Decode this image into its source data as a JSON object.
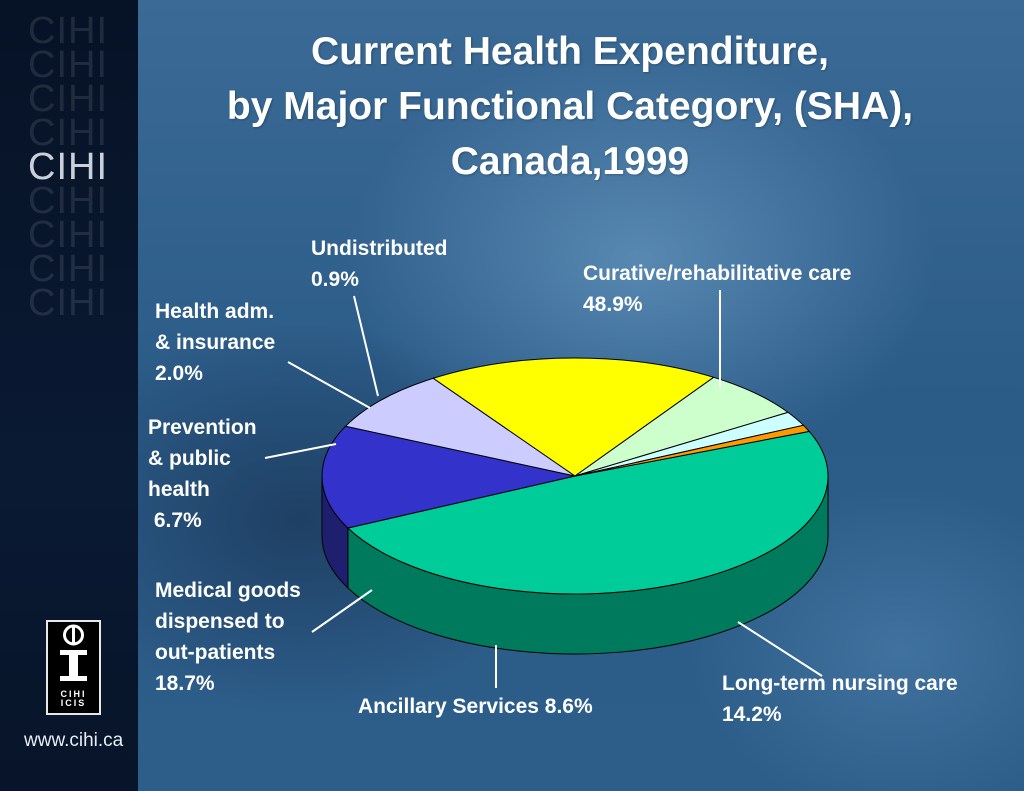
{
  "sidebar": {
    "watermark": "CIHI",
    "logo_text_1": "CIHI",
    "logo_text_2": "ICIS",
    "url": "www.cihi.ca"
  },
  "chart_data": {
    "type": "pie",
    "title_lines": [
      "Current Health Expenditure,",
      "by Major Functional Category, (SHA),",
      "Canada,1999"
    ],
    "slices": [
      {
        "label": "Curative/rehabilitative care",
        "value": 48.9,
        "value_label": "48.9%",
        "color": "#00cc99",
        "side_color": "#007a5c"
      },
      {
        "label": "Long-term nursing care",
        "value": 14.2,
        "value_label": "14.2%",
        "color": "#3333cc",
        "side_color": "#1f1f70"
      },
      {
        "label": "Ancillary Services",
        "value": 8.6,
        "value_label": "8.6%",
        "color": "#ccccff",
        "side_color": "#666680"
      },
      {
        "label": "Medical goods dispensed to out-patients",
        "value": 18.7,
        "value_label": "18.7%",
        "color": "#ffff00",
        "side_color": "#808000"
      },
      {
        "label": "Prevention & public health",
        "value": 6.7,
        "value_label": "6.7%",
        "color": "#ccffcc",
        "side_color": "#668066"
      },
      {
        "label": "Health adm. & insurance",
        "value": 2.0,
        "value_label": "2.0%",
        "color": "#ccffff",
        "side_color": "#668080"
      },
      {
        "label": "Undistributed",
        "value": 0.9,
        "value_label": "0.9%",
        "color": "#ff9900",
        "side_color": "#804d00"
      }
    ],
    "label_text": {
      "curative_1": "Curative/rehabilitative care",
      "curative_2": "48.9%",
      "longterm_1": "Long-term nursing care",
      "longterm_2": "14.2%",
      "ancillary": "Ancillary Services  8.6%",
      "medical_1": "Medical goods",
      "medical_2": "dispensed to",
      "medical_3": "out-patients",
      "medical_4": "18.7%",
      "prevention_1": "Prevention",
      "prevention_2": "& public",
      "prevention_3": "health",
      "prevention_4": " 6.7%",
      "healthadm_1": "Health adm.",
      "healthadm_2": "& insurance",
      "healthadm_3": "2.0%",
      "undistributed_1": "Undistributed",
      "undistributed_2": "0.9%"
    }
  }
}
